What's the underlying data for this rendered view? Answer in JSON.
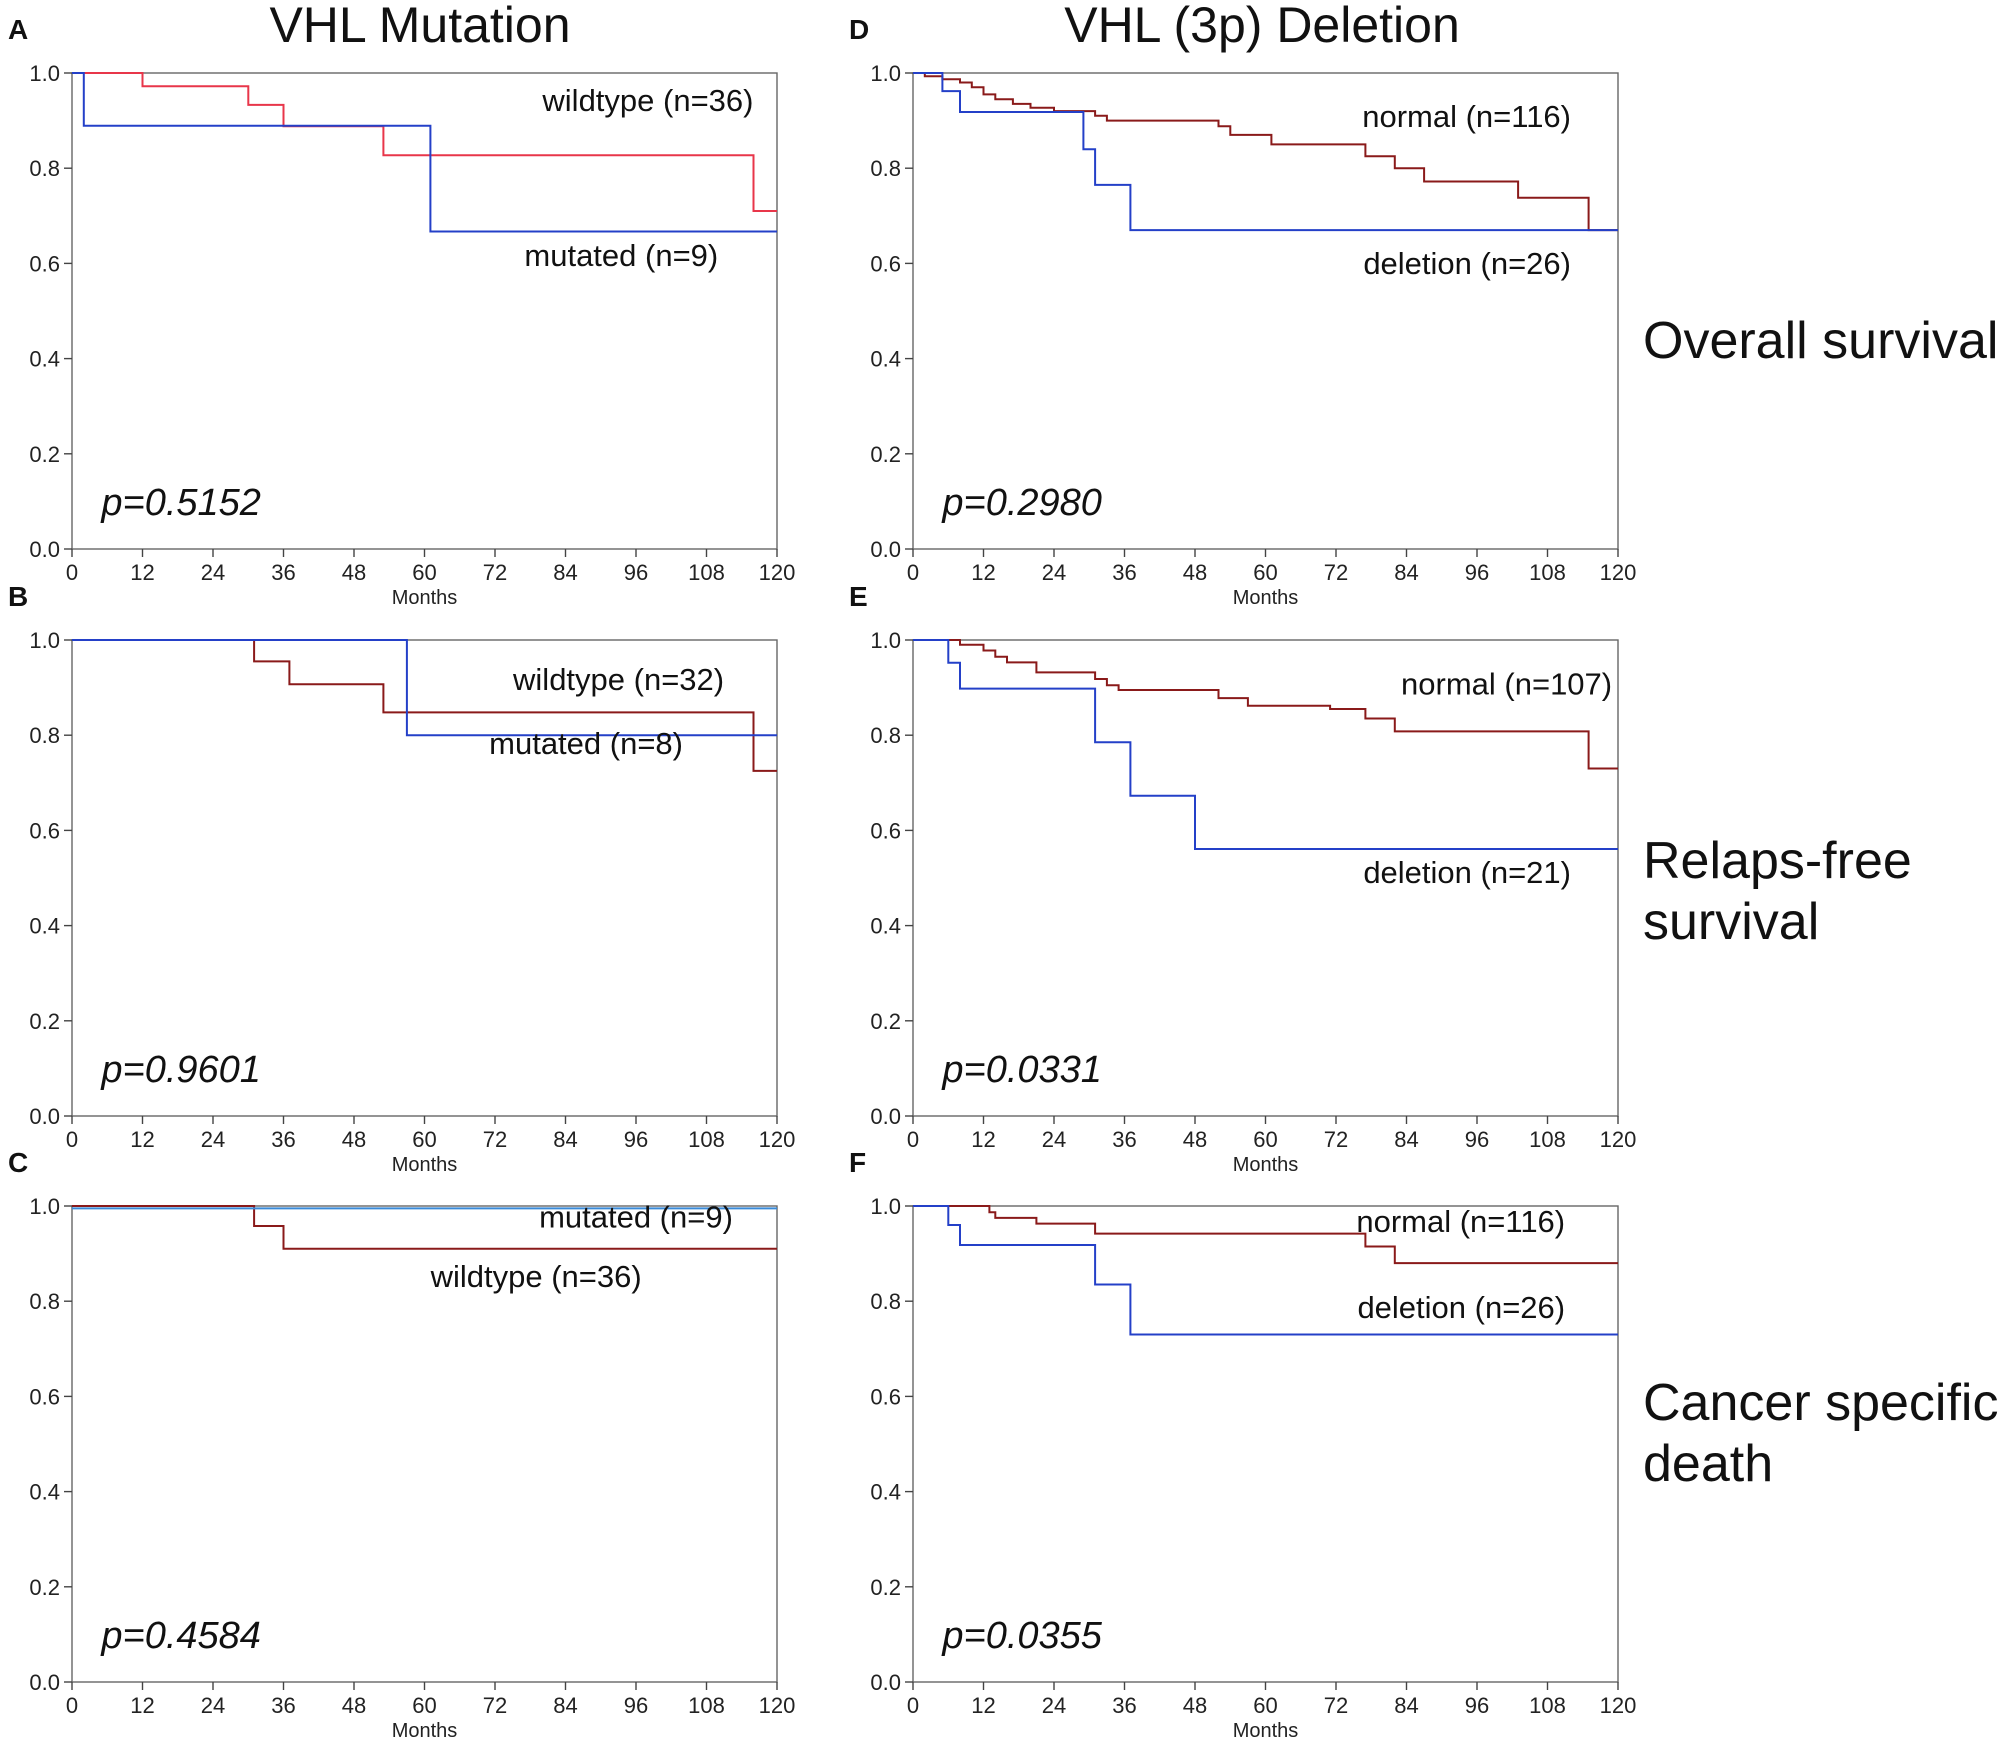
{
  "column_titles": [
    "VHL Mutation",
    "VHL (3p) Deletion"
  ],
  "row_labels": [
    [
      "Overall survival"
    ],
    [
      "Relaps-free",
      "survival"
    ],
    [
      "Cancer specific",
      "death"
    ]
  ],
  "chart_data": [
    {
      "panel": "A",
      "type": "line",
      "xlabel": "Months",
      "ylabel": "",
      "xlim": [
        0,
        120
      ],
      "ylim": [
        0,
        1
      ],
      "xticks": [
        0,
        12,
        24,
        36,
        48,
        60,
        72,
        84,
        96,
        108,
        120
      ],
      "yticks": [
        "0.0",
        "0.2",
        "0.4",
        "0.6",
        "0.8",
        "1.0"
      ],
      "p_value": "p=0.5152",
      "series": [
        {
          "name": "wildtype (n=36)",
          "color": "#e8364a",
          "points": [
            [
              0,
              1.0
            ],
            [
              12,
              1.0
            ],
            [
              12,
              0.972
            ],
            [
              30,
              0.972
            ],
            [
              30,
              0.933
            ],
            [
              36,
              0.933
            ],
            [
              36,
              0.888
            ],
            [
              53,
              0.888
            ],
            [
              53,
              0.827
            ],
            [
              116,
              0.827
            ],
            [
              116,
              0.71
            ],
            [
              120,
              0.71
            ]
          ]
        },
        {
          "name": "mutated (n=9)",
          "color": "#2440c8",
          "points": [
            [
              0,
              1.0
            ],
            [
              2,
              1.0
            ],
            [
              2,
              0.889
            ],
            [
              61,
              0.889
            ],
            [
              61,
              0.667
            ],
            [
              120,
              0.667
            ]
          ]
        }
      ]
    },
    {
      "panel": "B",
      "type": "line",
      "xlabel": "Months",
      "ylabel": "",
      "xlim": [
        0,
        120
      ],
      "ylim": [
        0,
        1
      ],
      "xticks": [
        0,
        12,
        24,
        36,
        48,
        60,
        72,
        84,
        96,
        108,
        120
      ],
      "yticks": [
        "0.0",
        "0.2",
        "0.4",
        "0.6",
        "0.8",
        "1.0"
      ],
      "p_value": "p=0.9601",
      "series": [
        {
          "name": "wildtype (n=32)",
          "color": "#8a1a1a",
          "points": [
            [
              0,
              1.0
            ],
            [
              31,
              1.0
            ],
            [
              31,
              0.955
            ],
            [
              37,
              0.955
            ],
            [
              37,
              0.907
            ],
            [
              53,
              0.907
            ],
            [
              53,
              0.848
            ],
            [
              116,
              0.848
            ],
            [
              116,
              0.725
            ],
            [
              120,
              0.725
            ]
          ]
        },
        {
          "name": "mutated (n=8)",
          "color": "#2440c8",
          "points": [
            [
              0,
              1.0
            ],
            [
              57,
              1.0
            ],
            [
              57,
              0.8
            ],
            [
              120,
              0.8
            ]
          ]
        }
      ]
    },
    {
      "panel": "C",
      "type": "line",
      "xlabel": "Months",
      "ylabel": "",
      "xlim": [
        0,
        120
      ],
      "ylim": [
        0,
        1
      ],
      "xticks": [
        0,
        12,
        24,
        36,
        48,
        60,
        72,
        84,
        96,
        108,
        120
      ],
      "yticks": [
        "0.0",
        "0.2",
        "0.4",
        "0.6",
        "0.8",
        "1.0"
      ],
      "p_value": "p=0.4584",
      "series": [
        {
          "name": "wildtype (n=36)",
          "color": "#8a1a1a",
          "points": [
            [
              0,
              1.0
            ],
            [
              31,
              1.0
            ],
            [
              31,
              0.958
            ],
            [
              36,
              0.958
            ],
            [
              36,
              0.91
            ],
            [
              120,
              0.91
            ]
          ]
        },
        {
          "name": "mutated (n=9)",
          "color": "#3a8ad8",
          "points": [
            [
              0,
              0.995
            ],
            [
              120,
              0.995
            ]
          ]
        }
      ]
    },
    {
      "panel": "D",
      "type": "line",
      "xlabel": "Months",
      "ylabel": "",
      "xlim": [
        0,
        120
      ],
      "ylim": [
        0,
        1
      ],
      "xticks": [
        0,
        12,
        24,
        36,
        48,
        60,
        72,
        84,
        96,
        108,
        120
      ],
      "yticks": [
        "0.0",
        "0.2",
        "0.4",
        "0.6",
        "0.8",
        "1.0"
      ],
      "p_value": "p=0.2980",
      "series": [
        {
          "name": "normal (n=116)",
          "color": "#8a1a1a",
          "points": [
            [
              0,
              1.0
            ],
            [
              2,
              1.0
            ],
            [
              2,
              0.993
            ],
            [
              5,
              0.993
            ],
            [
              5,
              0.987
            ],
            [
              8,
              0.987
            ],
            [
              8,
              0.98
            ],
            [
              10,
              0.98
            ],
            [
              10,
              0.97
            ],
            [
              12,
              0.97
            ],
            [
              12,
              0.955
            ],
            [
              14,
              0.955
            ],
            [
              14,
              0.945
            ],
            [
              17,
              0.945
            ],
            [
              17,
              0.935
            ],
            [
              20,
              0.935
            ],
            [
              20,
              0.927
            ],
            [
              24,
              0.927
            ],
            [
              24,
              0.92
            ],
            [
              31,
              0.92
            ],
            [
              31,
              0.91
            ],
            [
              33,
              0.91
            ],
            [
              33,
              0.9
            ],
            [
              52,
              0.9
            ],
            [
              52,
              0.888
            ],
            [
              54,
              0.888
            ],
            [
              54,
              0.87
            ],
            [
              61,
              0.87
            ],
            [
              61,
              0.85
            ],
            [
              77,
              0.85
            ],
            [
              77,
              0.825
            ],
            [
              82,
              0.825
            ],
            [
              82,
              0.8
            ],
            [
              87,
              0.8
            ],
            [
              87,
              0.772
            ],
            [
              103,
              0.772
            ],
            [
              103,
              0.738
            ],
            [
              115,
              0.738
            ],
            [
              115,
              0.67
            ],
            [
              120,
              0.67
            ]
          ]
        },
        {
          "name": "deletion (n=26)",
          "color": "#2440c8",
          "points": [
            [
              0,
              1.0
            ],
            [
              5,
              1.0
            ],
            [
              5,
              0.962
            ],
            [
              8,
              0.962
            ],
            [
              8,
              0.918
            ],
            [
              29,
              0.918
            ],
            [
              29,
              0.84
            ],
            [
              31,
              0.84
            ],
            [
              31,
              0.765
            ],
            [
              37,
              0.765
            ],
            [
              37,
              0.67
            ],
            [
              120,
              0.67
            ]
          ]
        }
      ]
    },
    {
      "panel": "E",
      "type": "line",
      "xlabel": "Months",
      "ylabel": "",
      "xlim": [
        0,
        120
      ],
      "ylim": [
        0,
        1
      ],
      "xticks": [
        0,
        12,
        24,
        36,
        48,
        60,
        72,
        84,
        96,
        108,
        120
      ],
      "yticks": [
        "0.0",
        "0.2",
        "0.4",
        "0.6",
        "0.8",
        "1.0"
      ],
      "p_value": "p=0.0331",
      "series": [
        {
          "name": "normal (n=107)",
          "color": "#8a1a1a",
          "points": [
            [
              0,
              1.0
            ],
            [
              8,
              1.0
            ],
            [
              8,
              0.99
            ],
            [
              12,
              0.99
            ],
            [
              12,
              0.978
            ],
            [
              14,
              0.978
            ],
            [
              14,
              0.965
            ],
            [
              16,
              0.965
            ],
            [
              16,
              0.953
            ],
            [
              21,
              0.953
            ],
            [
              21,
              0.932
            ],
            [
              31,
              0.932
            ],
            [
              31,
              0.918
            ],
            [
              33,
              0.918
            ],
            [
              33,
              0.905
            ],
            [
              35,
              0.905
            ],
            [
              35,
              0.895
            ],
            [
              52,
              0.895
            ],
            [
              52,
              0.878
            ],
            [
              57,
              0.878
            ],
            [
              57,
              0.862
            ],
            [
              71,
              0.862
            ],
            [
              71,
              0.855
            ],
            [
              77,
              0.855
            ],
            [
              77,
              0.835
            ],
            [
              82,
              0.835
            ],
            [
              82,
              0.808
            ],
            [
              115,
              0.808
            ],
            [
              115,
              0.73
            ],
            [
              120,
              0.73
            ]
          ]
        },
        {
          "name": "deletion (n=21)",
          "color": "#2440c8",
          "points": [
            [
              0,
              1.0
            ],
            [
              6,
              1.0
            ],
            [
              6,
              0.952
            ],
            [
              8,
              0.952
            ],
            [
              8,
              0.898
            ],
            [
              31,
              0.898
            ],
            [
              31,
              0.785
            ],
            [
              37,
              0.785
            ],
            [
              37,
              0.673
            ],
            [
              48,
              0.673
            ],
            [
              48,
              0.561
            ],
            [
              120,
              0.561
            ]
          ]
        }
      ]
    },
    {
      "panel": "F",
      "type": "line",
      "xlabel": "Months",
      "ylabel": "",
      "xlim": [
        0,
        120
      ],
      "ylim": [
        0,
        1
      ],
      "xticks": [
        0,
        12,
        24,
        36,
        48,
        60,
        72,
        84,
        96,
        108,
        120
      ],
      "yticks": [
        "0.0",
        "0.2",
        "0.4",
        "0.6",
        "0.8",
        "1.0"
      ],
      "p_value": "p=0.0355",
      "series": [
        {
          "name": "normal (n=116)",
          "color": "#8a1a1a",
          "points": [
            [
              0,
              1.0
            ],
            [
              13,
              1.0
            ],
            [
              13,
              0.987
            ],
            [
              14,
              0.987
            ],
            [
              14,
              0.975
            ],
            [
              21,
              0.975
            ],
            [
              21,
              0.963
            ],
            [
              31,
              0.963
            ],
            [
              31,
              0.942
            ],
            [
              77,
              0.942
            ],
            [
              77,
              0.915
            ],
            [
              82,
              0.915
            ],
            [
              82,
              0.88
            ],
            [
              120,
              0.88
            ]
          ]
        },
        {
          "name": "deletion (n=26)",
          "color": "#2440c8",
          "points": [
            [
              0,
              1.0
            ],
            [
              6,
              1.0
            ],
            [
              6,
              0.96
            ],
            [
              8,
              0.96
            ],
            [
              8,
              0.918
            ],
            [
              31,
              0.918
            ],
            [
              31,
              0.835
            ],
            [
              37,
              0.835
            ],
            [
              37,
              0.73
            ],
            [
              120,
              0.73
            ]
          ]
        }
      ]
    }
  ]
}
